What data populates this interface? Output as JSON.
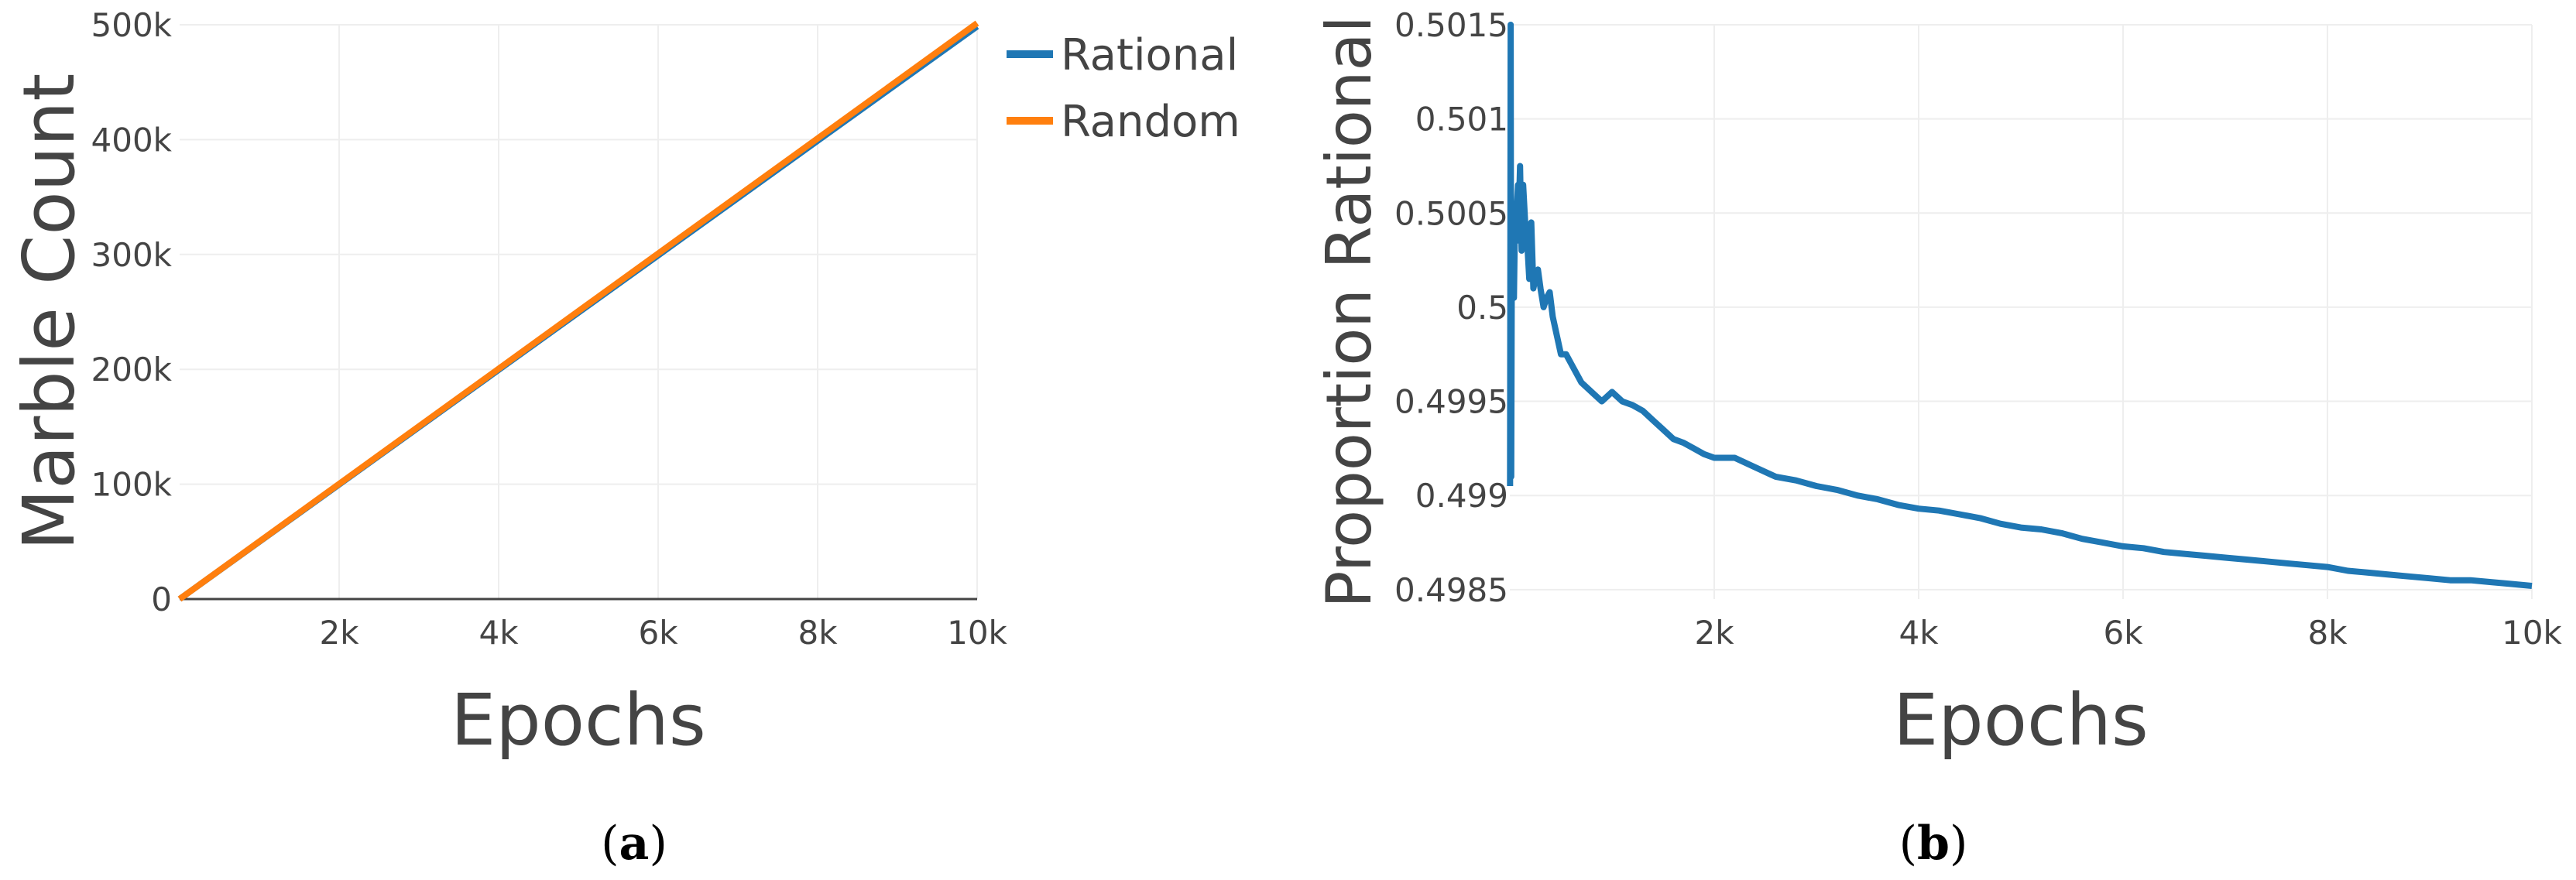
{
  "chart_data": [
    {
      "type": "line",
      "caption_letter": "a",
      "xlabel": "Epochs",
      "ylabel": "Marble Count",
      "xlim": [
        0,
        10000
      ],
      "ylim": [
        0,
        500000
      ],
      "x_ticks": [
        {
          "value": 2000,
          "label": "2k"
        },
        {
          "value": 4000,
          "label": "4k"
        },
        {
          "value": 6000,
          "label": "6k"
        },
        {
          "value": 8000,
          "label": "8k"
        },
        {
          "value": 10000,
          "label": "10k"
        }
      ],
      "y_ticks": [
        {
          "value": 0,
          "label": "0"
        },
        {
          "value": 100000,
          "label": "100k"
        },
        {
          "value": 200000,
          "label": "200k"
        },
        {
          "value": 300000,
          "label": "300k"
        },
        {
          "value": 400000,
          "label": "400k"
        },
        {
          "value": 500000,
          "label": "500k"
        }
      ],
      "grid": true,
      "legend_position": "top-right",
      "series": [
        {
          "name": "Rational",
          "color": "#1f77b4",
          "x": [
            0,
            2000,
            4000,
            6000,
            8000,
            10000
          ],
          "y": [
            0,
            99700,
            199500,
            299200,
            399000,
            498600
          ]
        },
        {
          "name": "Random",
          "color": "#ff7f0e",
          "x": [
            0,
            2000,
            4000,
            6000,
            8000,
            10000
          ],
          "y": [
            0,
            100300,
            200500,
            300800,
            401000,
            501400
          ]
        }
      ]
    },
    {
      "type": "line",
      "caption_letter": "b",
      "xlabel": "Epochs",
      "ylabel": "Proportion Rational",
      "xlim": [
        0,
        10000
      ],
      "ylim": [
        0.49845,
        0.5015
      ],
      "x_ticks": [
        {
          "value": 2000,
          "label": "2k"
        },
        {
          "value": 4000,
          "label": "4k"
        },
        {
          "value": 6000,
          "label": "6k"
        },
        {
          "value": 8000,
          "label": "8k"
        },
        {
          "value": 10000,
          "label": "10k"
        }
      ],
      "y_ticks": [
        {
          "value": 0.4985,
          "label": "0.4985"
        },
        {
          "value": 0.499,
          "label": "0.499"
        },
        {
          "value": 0.4995,
          "label": "0.4995"
        },
        {
          "value": 0.5,
          "label": "0.5"
        },
        {
          "value": 0.5005,
          "label": "0.5005"
        },
        {
          "value": 0.501,
          "label": "0.501"
        },
        {
          "value": 0.5015,
          "label": "0.5015"
        }
      ],
      "grid": true,
      "series": [
        {
          "color": "#1f77b4",
          "x": [
            2,
            8,
            14,
            20,
            26,
            32,
            40,
            50,
            60,
            70,
            80,
            90,
            100,
            115,
            130,
            150,
            170,
            190,
            210,
            230,
            250,
            275,
            300,
            330,
            360,
            390,
            420,
            460,
            500,
            550,
            600,
            700,
            800,
            900,
            1000,
            1100,
            1200,
            1300,
            1400,
            1500,
            1600,
            1700,
            1800,
            1900,
            2000,
            2200,
            2400,
            2600,
            2800,
            3000,
            3200,
            3400,
            3600,
            3800,
            4000,
            4200,
            4400,
            4600,
            4800,
            5000,
            5200,
            5400,
            5600,
            5800,
            6000,
            6200,
            6400,
            6600,
            6800,
            7000,
            7200,
            7400,
            7600,
            7800,
            8000,
            8200,
            8400,
            8600,
            8800,
            9000,
            9200,
            9400,
            9600,
            9800,
            10000
          ],
          "y": [
            0.49905,
            0.5015,
            0.4991,
            0.5003,
            0.5001,
            0.50055,
            0.50005,
            0.50045,
            0.50035,
            0.50055,
            0.50065,
            0.50055,
            0.50075,
            0.5003,
            0.50065,
            0.50045,
            0.50035,
            0.50015,
            0.50045,
            0.5001,
            0.50015,
            0.5002,
            0.5001,
            0.5,
            0.50005,
            0.50008,
            0.49995,
            0.49985,
            0.49975,
            0.49975,
            0.4997,
            0.4996,
            0.49955,
            0.4995,
            0.49955,
            0.4995,
            0.49948,
            0.49945,
            0.4994,
            0.49935,
            0.4993,
            0.49928,
            0.49925,
            0.49922,
            0.4992,
            0.4992,
            0.49915,
            0.4991,
            0.49908,
            0.49905,
            0.49903,
            0.499,
            0.49898,
            0.49895,
            0.49893,
            0.49892,
            0.4989,
            0.49888,
            0.49885,
            0.49883,
            0.49882,
            0.4988,
            0.49877,
            0.49875,
            0.49873,
            0.49872,
            0.4987,
            0.49869,
            0.49868,
            0.49867,
            0.49866,
            0.49865,
            0.49864,
            0.49863,
            0.49862,
            0.4986,
            0.49859,
            0.49858,
            0.49857,
            0.49856,
            0.49855,
            0.49855,
            0.49854,
            0.49853,
            0.49852
          ]
        }
      ]
    }
  ]
}
